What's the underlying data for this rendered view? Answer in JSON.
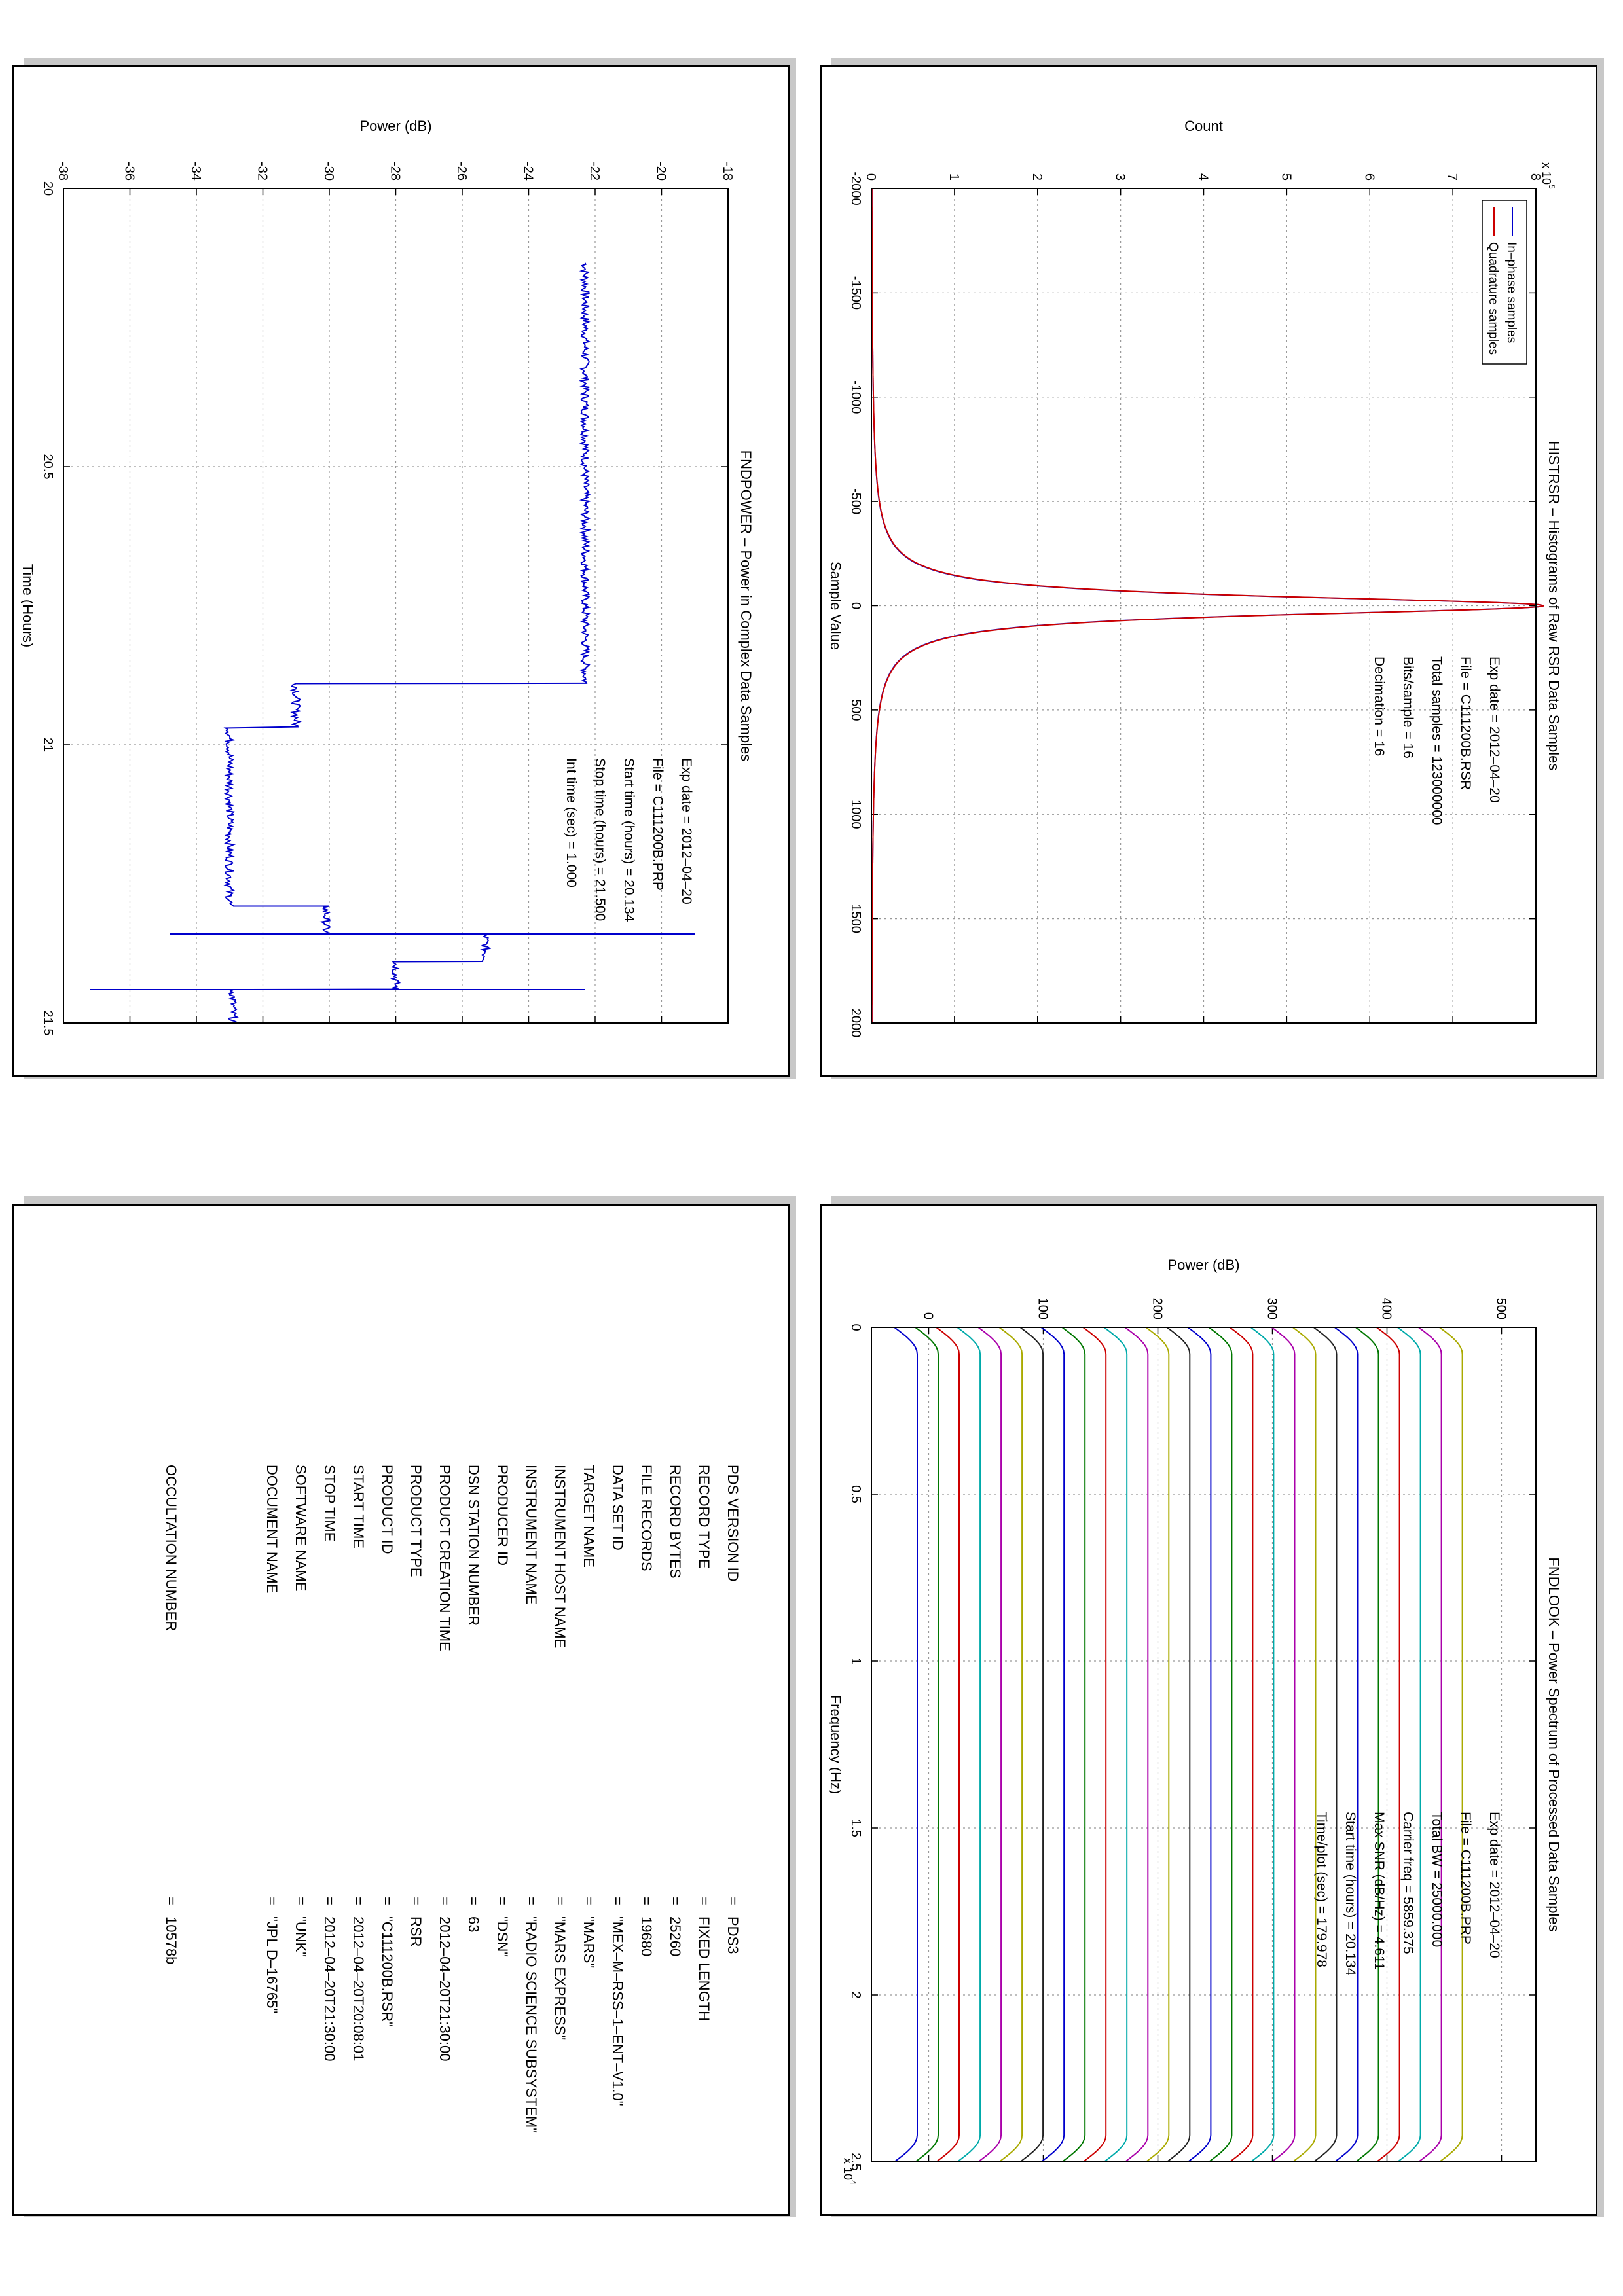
{
  "chart_data": [
    {
      "id": "histogram",
      "type": "line",
      "title": "HISTRSR – Histograms of Raw RSR Data Samples",
      "xlabel": "Sample Value",
      "ylabel": "Count",
      "xlim": [
        -2000,
        2000
      ],
      "ylim": [
        0,
        8
      ],
      "y_multiplier": "x 10",
      "y_multiplier_exp": "5",
      "xticks": [
        "-2000",
        "-1500",
        "-1000",
        "-500",
        "0",
        "500",
        "1000",
        "1500",
        "2000"
      ],
      "yticks": [
        "0",
        "1",
        "2",
        "3",
        "4",
        "5",
        "6",
        "7",
        "8"
      ],
      "grid": true,
      "legend_position": "top-left",
      "legend": [
        {
          "name": "In–phase samples",
          "color": "#0000cc"
        },
        {
          "name": "Quadrature samples",
          "color": "#cc0000"
        }
      ],
      "peak": {
        "center": 0,
        "peak_count": 8.1,
        "half_width_at_half_max": 55
      },
      "annotations": [
        {
          "label": "Exp date = 2012–04–20"
        },
        {
          "label": "File = C111200B.RSR"
        },
        {
          "label": "Total samples =  123000000"
        },
        {
          "label": "Bits/sample   =       16"
        },
        {
          "label": "Decimation   =       16"
        }
      ]
    },
    {
      "id": "power",
      "type": "line",
      "title": "FNDPOWER – Power in Complex Data Samples",
      "xlabel": "Time (Hours)",
      "ylabel": "Power (dB)",
      "xlim": [
        20.0,
        21.5
      ],
      "ylim": [
        -38,
        -18
      ],
      "xticks": [
        "20",
        "20.5",
        "21",
        "21.5"
      ],
      "yticks": [
        "-38",
        "-36",
        "-34",
        "-32",
        "-30",
        "-28",
        "-26",
        "-24",
        "-22",
        "-20",
        "-18"
      ],
      "grid": true,
      "color": "#0000cc",
      "segments": [
        {
          "x0": 20.134,
          "x1": 20.89,
          "y": -22.3
        },
        {
          "x0": 20.89,
          "x1": 20.97,
          "y": -31.0
        },
        {
          "x0": 20.97,
          "x1": 21.29,
          "y": -33.0
        },
        {
          "x0": 21.29,
          "x1": 21.34,
          "y": -30.1
        },
        {
          "x0": 21.34,
          "x1": 21.39,
          "y": -25.3
        },
        {
          "x0": 21.39,
          "x1": 21.44,
          "y": -28.0
        },
        {
          "x0": 21.44,
          "x1": 21.5,
          "y": -32.9
        }
      ],
      "spikes": [
        {
          "x": 21.34,
          "y_from": -34.8,
          "y_to": -19.0
        },
        {
          "x": 21.44,
          "y_from": -37.2,
          "y_to": -22.3
        }
      ],
      "annotations": [
        {
          "label": "Exp date = 2012–04–20"
        },
        {
          "label": "File = C111200B.PRP"
        },
        {
          "label": "Start time (hours) = 20.134"
        },
        {
          "label": "Stop time (hours) =  21.500"
        },
        {
          "label": "Int time (sec) =      1.000"
        }
      ]
    },
    {
      "id": "spectrum",
      "type": "line",
      "title": "FNDLOOK – Power Spectrum of Processed Data Samples",
      "xlabel": "Frequency (Hz)",
      "ylabel": "Power (dB)",
      "xlim": [
        0,
        25000
      ],
      "ylim": [
        -50,
        530
      ],
      "x_multiplier": "x 10",
      "x_multiplier_exp": "4",
      "xticks": [
        "0",
        "0.5",
        "1",
        "1.5",
        "2",
        "2.5"
      ],
      "yticks": [
        "0",
        "100",
        "200",
        "300",
        "400",
        "500"
      ],
      "grid": true,
      "series_count": 27,
      "series_bottom": -30,
      "series_step": 18.3,
      "series_height": 20,
      "edge_rolloff_hz": 800,
      "colors": [
        "#0000cc",
        "#007700",
        "#cc0000",
        "#00aaaa",
        "#aa00aa",
        "#aaaa00",
        "#222222"
      ],
      "annotations": [
        {
          "label": "Exp date = 2012–04–20"
        },
        {
          "label": "File = C111200B.PRP"
        },
        {
          "label": "Total BW =     25000.000"
        },
        {
          "label": "Carrier freq =   5859.375"
        },
        {
          "label": "Max SNR (dB/Hz) =     4.611"
        },
        {
          "label": "Start time (hours) =  20.134"
        },
        {
          "label": "Time/plot (sec) =   179.978"
        }
      ]
    }
  ],
  "label_table": {
    "rows": [
      {
        "name": "PDS VERSION ID",
        "value": "PDS3"
      },
      {
        "name": "RECORD TYPE",
        "value": "FIXED LENGTH"
      },
      {
        "name": "RECORD BYTES",
        "value": "25260"
      },
      {
        "name": "FILE RECORDS",
        "value": "19680"
      },
      {
        "name": "DATA SET ID",
        "value": "\"MEX–M–RSS–1–ENT–V1.0\""
      },
      {
        "name": "TARGET NAME",
        "value": "\"MARS\""
      },
      {
        "name": "INSTRUMENT HOST NAME",
        "value": "\"MARS EXPRESS\""
      },
      {
        "name": "INSTRUMENT NAME",
        "value": "\"RADIO SCIENCE SUBSYSTEM\""
      },
      {
        "name": "PRODUCER ID",
        "value": "\"DSN\""
      },
      {
        "name": "DSN STATION NUMBER",
        "value": "63"
      },
      {
        "name": "PRODUCT CREATION TIME",
        "value": "2012–04–20T21:30:00"
      },
      {
        "name": "PRODUCT TYPE",
        "value": "RSR"
      },
      {
        "name": "PRODUCT ID",
        "value": "\"C111200B.RSR\""
      },
      {
        "name": "START TIME",
        "value": "2012–04–20T20:08:01"
      },
      {
        "name": "STOP TIME",
        "value": "2012–04–20T21:30:00"
      },
      {
        "name": "SOFTWARE NAME",
        "value": "\"UNK\""
      },
      {
        "name": "DOCUMENT NAME",
        "value": "\"JPL D–16765\""
      },
      {
        "name": "OCCULTATION NUMBER",
        "value": "10578b"
      }
    ],
    "eq": "="
  }
}
